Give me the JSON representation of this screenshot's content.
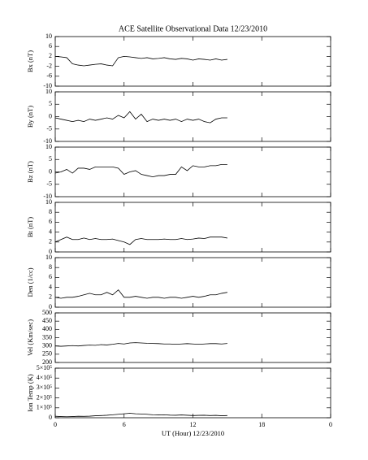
{
  "chart_data": [
    {
      "type": "line",
      "title": "ACE Satellite Observational Data   12/23/2010",
      "ylabel": "Bx (nT)",
      "xlim": [
        0,
        24
      ],
      "ylim": [
        -10,
        10
      ],
      "yticks": [
        -10,
        -6,
        -2,
        2,
        6,
        10
      ],
      "x": [
        0,
        0.5,
        1,
        1.5,
        2,
        2.5,
        3,
        3.5,
        4,
        4.5,
        5,
        5.5,
        6,
        6.5,
        7,
        7.5,
        8,
        8.5,
        9,
        9.5,
        10,
        10.5,
        11,
        11.5,
        12,
        12.5,
        13,
        13.5,
        14,
        14.5,
        15
      ],
      "values": [
        2,
        1.8,
        1.5,
        -1,
        -1.5,
        -1.8,
        -1.5,
        -1.2,
        -1,
        -1.5,
        -1.8,
        1.5,
        2,
        1.8,
        1.5,
        1.2,
        1.5,
        1,
        1.2,
        1.5,
        1,
        0.8,
        1.2,
        1,
        0.5,
        1,
        0.8,
        0.5,
        1,
        0.5,
        0.8
      ]
    },
    {
      "type": "line",
      "ylabel": "By (nT)",
      "xlim": [
        0,
        24
      ],
      "ylim": [
        -10,
        10
      ],
      "yticks": [
        -10,
        -5,
        0,
        5,
        10
      ],
      "x": [
        0,
        0.5,
        1,
        1.5,
        2,
        2.5,
        3,
        3.5,
        4,
        4.5,
        5,
        5.5,
        6,
        6.5,
        7,
        7.5,
        8,
        8.5,
        9,
        9.5,
        10,
        10.5,
        11,
        11.5,
        12,
        12.5,
        13,
        13.5,
        14,
        14.5,
        15
      ],
      "values": [
        -0.5,
        -1,
        -1.5,
        -2,
        -1.5,
        -2,
        -1,
        -1.5,
        -1,
        -0.5,
        -1,
        0.5,
        -0.5,
        2,
        -1,
        1,
        -2,
        -1,
        -1.5,
        -1,
        -1.5,
        -1,
        -2,
        -1,
        -1.5,
        -1,
        -2,
        -2.5,
        -1,
        -0.5,
        -0.5
      ]
    },
    {
      "type": "line",
      "ylabel": "Bz (nT)",
      "xlim": [
        0,
        24
      ],
      "ylim": [
        -10,
        10
      ],
      "yticks": [
        -10,
        -5,
        0,
        5,
        10
      ],
      "x": [
        0,
        0.5,
        1,
        1.5,
        2,
        2.5,
        3,
        3.5,
        4,
        4.5,
        5,
        5.5,
        6,
        6.5,
        7,
        7.5,
        8,
        8.5,
        9,
        9.5,
        10,
        10.5,
        11,
        11.5,
        12,
        12.5,
        13,
        13.5,
        14,
        14.5,
        15
      ],
      "values": [
        -0.5,
        0,
        1,
        -0.5,
        1.5,
        1.5,
        1,
        2,
        2,
        2,
        2,
        1.5,
        -1,
        0,
        0.5,
        -1,
        -1.5,
        -2,
        -1.5,
        -1.5,
        -1,
        -1,
        2,
        0.5,
        2.5,
        2,
        2,
        2.5,
        2.5,
        3,
        3
      ]
    },
    {
      "type": "line",
      "ylabel": "Bt (nT)",
      "xlim": [
        0,
        24
      ],
      "ylim": [
        0,
        10
      ],
      "yticks": [
        0,
        2,
        4,
        6,
        8,
        10
      ],
      "x": [
        0,
        0.5,
        1,
        1.5,
        2,
        2.5,
        3,
        3.5,
        4,
        4.5,
        5,
        5.5,
        6,
        6.5,
        7,
        7.5,
        8,
        8.5,
        9,
        9.5,
        10,
        10.5,
        11,
        11.5,
        12,
        12.5,
        13,
        13.5,
        14,
        14.5,
        15
      ],
      "values": [
        2,
        2.5,
        3,
        2.5,
        2.5,
        2.8,
        2.5,
        2.7,
        2.5,
        2.5,
        2.6,
        2.3,
        2,
        1.5,
        2.5,
        2.7,
        2.5,
        2.5,
        2.5,
        2.6,
        2.5,
        2.5,
        2.7,
        2.5,
        2.6,
        2.8,
        2.7,
        3,
        3,
        3,
        2.8
      ]
    },
    {
      "type": "line",
      "ylabel": "Den (1/cc)",
      "xlim": [
        0,
        24
      ],
      "ylim": [
        0,
        10
      ],
      "yticks": [
        0,
        2,
        4,
        6,
        8,
        10
      ],
      "x": [
        0,
        0.5,
        1,
        1.5,
        2,
        2.5,
        3,
        3.5,
        4,
        4.5,
        5,
        5.5,
        6,
        6.5,
        7,
        7.5,
        8,
        8.5,
        9,
        9.5,
        10,
        10.5,
        11,
        11.5,
        12,
        12.5,
        13,
        13.5,
        14,
        14.5,
        15
      ],
      "values": [
        2,
        1.8,
        2,
        2,
        2.2,
        2.5,
        2.8,
        2.5,
        2.5,
        3,
        2.5,
        3.5,
        2,
        2,
        2.2,
        2,
        1.8,
        2,
        2,
        1.8,
        2,
        2,
        1.8,
        2,
        2.2,
        2,
        2.2,
        2.5,
        2.5,
        2.8,
        3
      ]
    },
    {
      "type": "line",
      "ylabel": "Vel (Km/sec)",
      "xlim": [
        0,
        24
      ],
      "ylim": [
        200,
        500
      ],
      "yticks": [
        200,
        250,
        300,
        350,
        400,
        450,
        500
      ],
      "x": [
        0,
        0.5,
        1,
        1.5,
        2,
        2.5,
        3,
        3.5,
        4,
        4.5,
        5,
        5.5,
        6,
        6.5,
        7,
        7.5,
        8,
        8.5,
        9,
        9.5,
        10,
        10.5,
        11,
        11.5,
        12,
        12.5,
        13,
        13.5,
        14,
        14.5,
        15
      ],
      "values": [
        300,
        298,
        300,
        302,
        300,
        303,
        305,
        304,
        308,
        306,
        310,
        315,
        312,
        318,
        320,
        318,
        316,
        315,
        314,
        312,
        312,
        310,
        312,
        314,
        312,
        310,
        312,
        314,
        314,
        312,
        315
      ]
    },
    {
      "type": "line",
      "ylabel": "Ion Temp (K)",
      "xlabel": "UT (Hour)  12/23/2010",
      "xlim": [
        0,
        24
      ],
      "ylim": [
        0,
        500000
      ],
      "yticks": [
        0,
        {
          "value": 100000,
          "label": "1×10⁵"
        },
        {
          "value": 200000,
          "label": "2×10⁵"
        },
        {
          "value": 300000,
          "label": "3×10⁵"
        },
        {
          "value": 400000,
          "label": "4×10⁵"
        },
        {
          "value": 500000,
          "label": "5×10⁵"
        }
      ],
      "xticks": [
        0,
        6,
        12,
        18,
        {
          "value": 24,
          "label": "0"
        }
      ],
      "x": [
        0,
        0.5,
        1,
        1.5,
        2,
        2.5,
        3,
        3.5,
        4,
        4.5,
        5,
        5.5,
        6,
        6.5,
        7,
        7.5,
        8,
        8.5,
        9,
        9.5,
        10,
        10.5,
        11,
        11.5,
        12,
        12.5,
        13,
        13.5,
        14,
        14.5,
        15
      ],
      "values": [
        15000,
        12000,
        10000,
        12000,
        15000,
        14000,
        16000,
        20000,
        22000,
        25000,
        30000,
        35000,
        40000,
        45000,
        40000,
        38000,
        35000,
        30000,
        28000,
        30000,
        26000,
        25000,
        28000,
        25000,
        22000,
        24000,
        25000,
        22000,
        24000,
        20000,
        22000
      ]
    }
  ]
}
